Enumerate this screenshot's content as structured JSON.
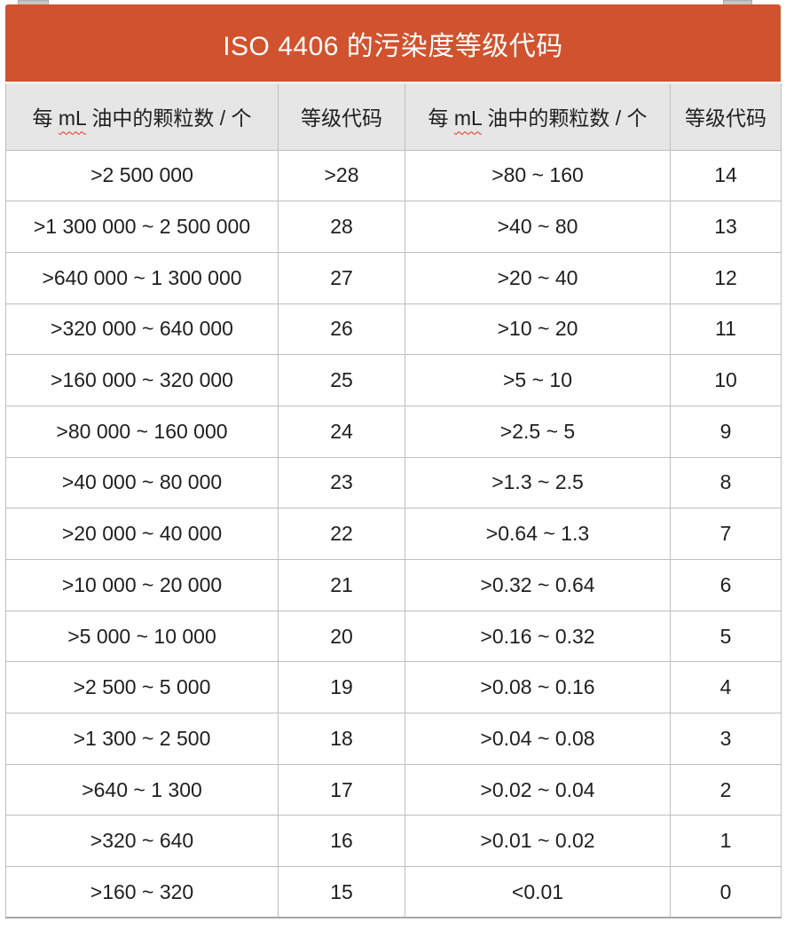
{
  "title": "ISO 4406 的污染度等级代码",
  "colors": {
    "banner_bg": "#D1522E",
    "banner_text": "#FFFFFF",
    "header_bg": "#E7E6E6",
    "border": "#BFBFBF",
    "border_bottom": "#A6A6A6",
    "text": "#1F1F1F",
    "spellcheck_red": "#E0321E",
    "handle_gray": "#C6C6C6"
  },
  "table": {
    "headers": {
      "particles_pre": "每 ",
      "particles_wavy": "mL",
      "particles_post": " 油中的颗粒数 / 个",
      "code": "等级代码"
    },
    "rows": [
      {
        "left_range": ">2 500 000",
        "left_code": ">28",
        "right_range": ">80 ~ 160",
        "right_code": "14"
      },
      {
        "left_range": ">1 300 000 ~ 2 500 000",
        "left_code": "28",
        "right_range": ">40 ~ 80",
        "right_code": "13"
      },
      {
        "left_range": ">640 000 ~ 1 300 000",
        "left_code": "27",
        "right_range": ">20 ~ 40",
        "right_code": "12"
      },
      {
        "left_range": ">320 000 ~ 640 000",
        "left_code": "26",
        "right_range": ">10 ~ 20",
        "right_code": "11"
      },
      {
        "left_range": ">160 000 ~ 320 000",
        "left_code": "25",
        "right_range": ">5 ~ 10",
        "right_code": "10"
      },
      {
        "left_range": ">80 000 ~ 160 000",
        "left_code": "24",
        "right_range": ">2.5 ~ 5",
        "right_code": "9"
      },
      {
        "left_range": ">40 000 ~ 80 000",
        "left_code": "23",
        "right_range": ">1.3 ~ 2.5",
        "right_code": "8"
      },
      {
        "left_range": ">20 000 ~ 40 000",
        "left_code": "22",
        "right_range": ">0.64 ~ 1.3",
        "right_code": "7"
      },
      {
        "left_range": ">10 000 ~ 20 000",
        "left_code": "21",
        "right_range": ">0.32 ~ 0.64",
        "right_code": "6"
      },
      {
        "left_range": ">5 000 ~ 10 000",
        "left_code": "20",
        "right_range": ">0.16 ~ 0.32",
        "right_code": "5"
      },
      {
        "left_range": ">2 500 ~ 5 000",
        "left_code": "19",
        "right_range": ">0.08 ~ 0.16",
        "right_code": "4"
      },
      {
        "left_range": ">1 300 ~ 2 500",
        "left_code": "18",
        "right_range": ">0.04 ~ 0.08",
        "right_code": "3"
      },
      {
        "left_range": ">640 ~ 1 300",
        "left_code": "17",
        "right_range": ">0.02 ~ 0.04",
        "right_code": "2"
      },
      {
        "left_range": ">320 ~ 640",
        "left_code": "16",
        "right_range": ">0.01 ~ 0.02",
        "right_code": "1"
      },
      {
        "left_range": ">160 ~ 320",
        "left_code": "15",
        "right_range": "<0.01",
        "right_code": "0"
      }
    ]
  }
}
